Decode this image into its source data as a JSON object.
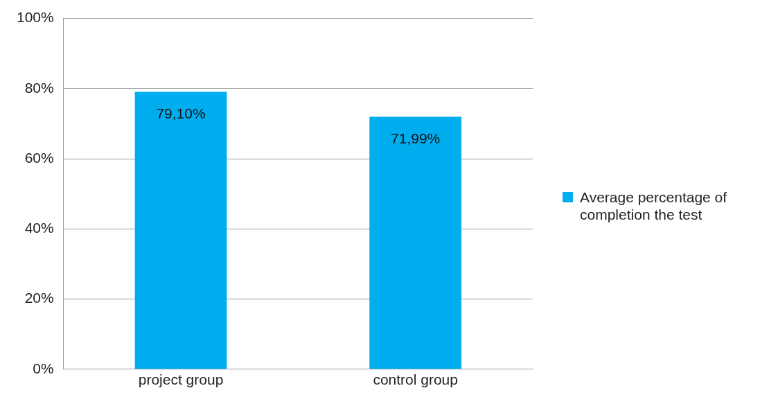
{
  "chart_data": {
    "type": "bar",
    "categories": [
      "project group",
      "control group"
    ],
    "series": [
      {
        "name": "Average percentage of completion the test",
        "color": "#00aeef",
        "values": [
          79.1,
          71.99
        ],
        "value_labels": [
          "79,10%",
          "71,99%"
        ]
      }
    ],
    "ylim": [
      0,
      100
    ],
    "yticks": [
      {
        "value": 0,
        "label": "0%"
      },
      {
        "value": 20,
        "label": "20%"
      },
      {
        "value": 40,
        "label": "40%"
      },
      {
        "value": 60,
        "label": "60%"
      },
      {
        "value": 80,
        "label": "80%"
      },
      {
        "value": 100,
        "label": "100%"
      }
    ],
    "grid": "y",
    "legend": "right"
  }
}
